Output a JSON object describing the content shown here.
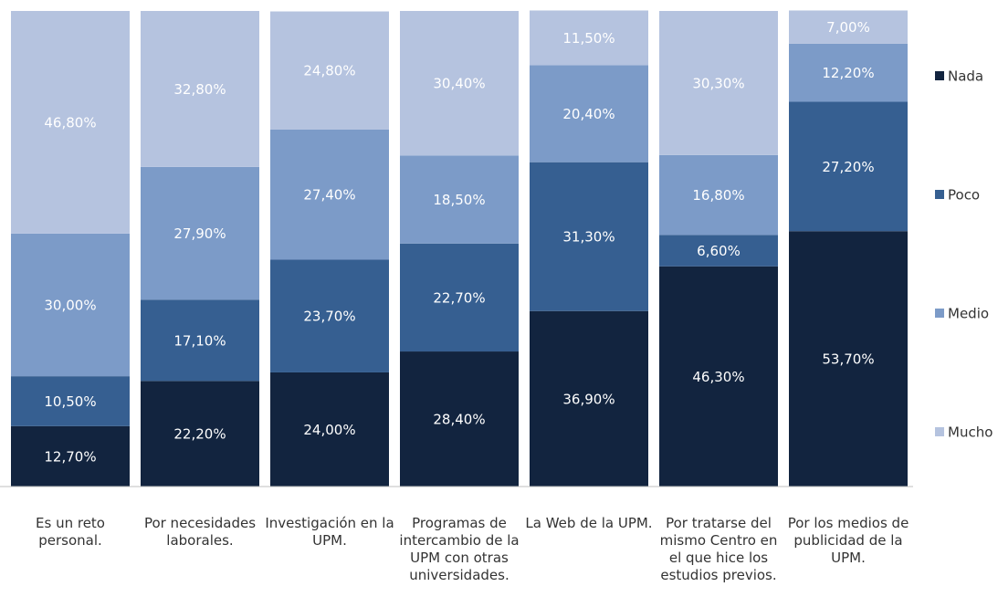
{
  "chart_data": {
    "type": "stacked_bar",
    "categories": [
      "Es un reto personal.",
      "Por necesidades laborales.",
      "Investigación en la UPM.",
      "Programas de intercambio de la UPM con otras universidades.",
      "La Web de la UPM.",
      "Por tratarse del mismo Centro en el que hice los estudios previos.",
      "Por los medios de publicidad de la UPM."
    ],
    "series": [
      {
        "name": "Nada",
        "color": "#12243f",
        "values": [
          12.7,
          22.2,
          24.0,
          28.4,
          36.9,
          46.3,
          53.7
        ],
        "value_labels": [
          "12,70%",
          "22,20%",
          "24,00%",
          "28,40%",
          "36,90%",
          "46,30%",
          "53,70%"
        ]
      },
      {
        "name": "Poco",
        "color": "#365f91",
        "values": [
          10.5,
          17.1,
          23.7,
          22.7,
          31.3,
          6.6,
          27.2
        ],
        "value_labels": [
          "10,50%",
          "17,10%",
          "23,70%",
          "22,70%",
          "31,30%",
          "6,60%",
          "27,20%"
        ]
      },
      {
        "name": "Medio",
        "color": "#7c9bc8",
        "values": [
          30.0,
          27.9,
          27.4,
          18.5,
          20.4,
          16.8,
          12.2
        ],
        "value_labels": [
          "30,00%",
          "27,90%",
          "27,40%",
          "18,50%",
          "20,40%",
          "16,80%",
          "12,20%"
        ]
      },
      {
        "name": "Mucho",
        "color": "#b5c3df",
        "values": [
          46.8,
          32.8,
          24.8,
          30.4,
          11.5,
          30.3,
          7.0
        ],
        "value_labels": [
          "46,80%",
          "32,80%",
          "24,80%",
          "30,40%",
          "11,50%",
          "30,30%",
          "7,00%"
        ]
      }
    ],
    "ylim": [
      0,
      100
    ],
    "legend": "right"
  }
}
